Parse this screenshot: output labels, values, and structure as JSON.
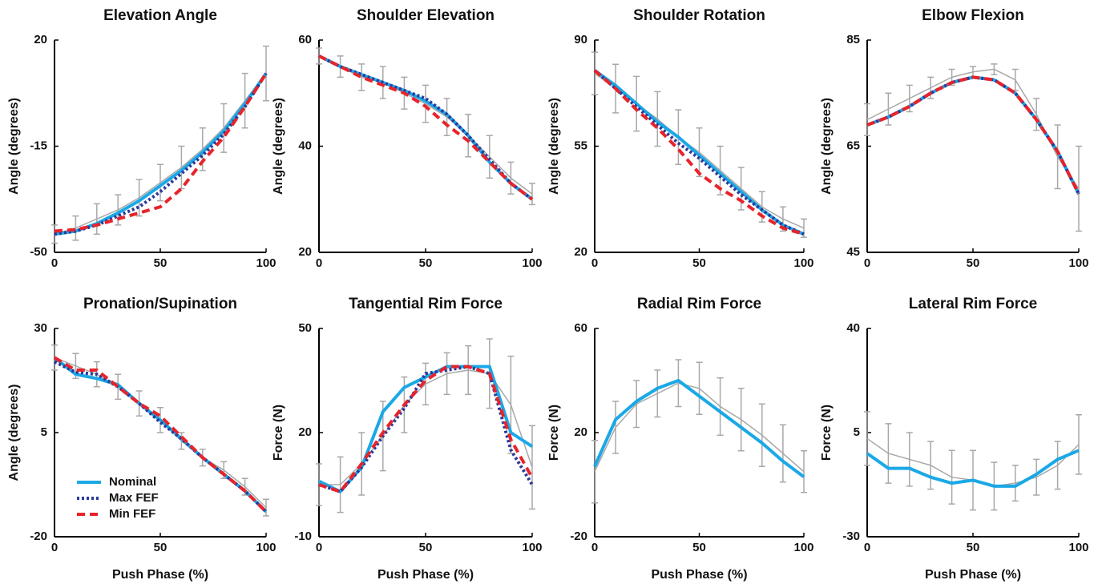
{
  "chart_data": [
    {
      "type": "line",
      "title": "Elevation Angle",
      "ylabel": "Angle (degrees)",
      "xlim": [
        0,
        100
      ],
      "xticks": [
        0,
        50,
        100
      ],
      "ylim": [
        -50,
        20
      ],
      "yticks": [
        -50,
        -15,
        20
      ],
      "x": [
        0,
        10,
        20,
        30,
        40,
        50,
        60,
        70,
        80,
        90,
        100
      ],
      "series": [
        {
          "name": "Nominal",
          "color": "#1ba8e6",
          "dash": "solid",
          "values": [
            -44,
            -43,
            -40.5,
            -37,
            -33,
            -28,
            -23,
            -17,
            -10,
            -1,
            9
          ]
        },
        {
          "name": "Max FEF",
          "color": "#2b3a9a",
          "dash": "dotted",
          "values": [
            -44,
            -43,
            -41,
            -38,
            -35,
            -30,
            -24,
            -18,
            -11,
            -2,
            9
          ]
        },
        {
          "name": "Min FEF",
          "color": "#e8232a",
          "dash": "dashed",
          "values": [
            -43,
            -42.5,
            -41,
            -39,
            -37,
            -35,
            -29,
            -20,
            -12,
            -2,
            9
          ]
        }
      ],
      "error_bars": {
        "color": "#a8a8a8",
        "values": [
          -44,
          -42,
          -39,
          -36,
          -32,
          -27,
          -22,
          -16,
          -9,
          0,
          9
        ],
        "errors": [
          3,
          4,
          5,
          5,
          6,
          6,
          7,
          7,
          8,
          9,
          9
        ]
      }
    },
    {
      "type": "line",
      "title": "Shoulder Elevation",
      "ylabel": "Angle (degrees)",
      "xlim": [
        0,
        100
      ],
      "xticks": [
        0,
        50,
        100
      ],
      "ylim": [
        20,
        60
      ],
      "yticks": [
        20,
        40,
        60
      ],
      "x": [
        0,
        10,
        20,
        30,
        40,
        50,
        60,
        70,
        80,
        90,
        100
      ],
      "series": [
        {
          "name": "Nominal",
          "color": "#1ba8e6",
          "dash": "solid",
          "values": [
            57,
            55,
            53.5,
            52,
            50.5,
            48.5,
            46,
            42,
            37,
            33,
            30
          ]
        },
        {
          "name": "Max FEF",
          "color": "#2b3a9a",
          "dash": "dotted",
          "values": [
            57,
            55,
            53.5,
            52,
            50.5,
            49,
            46,
            42,
            37.5,
            33,
            30
          ]
        },
        {
          "name": "Min FEF",
          "color": "#e8232a",
          "dash": "dashed",
          "values": [
            57,
            55,
            53,
            51.5,
            50,
            47.5,
            44,
            41,
            37,
            33,
            30
          ]
        }
      ],
      "error_bars": {
        "color": "#a8a8a8",
        "values": [
          57,
          55,
          53,
          52,
          50,
          48,
          45.5,
          42,
          38,
          34,
          31
        ],
        "errors": [
          1.5,
          2,
          2.5,
          3,
          3,
          3.5,
          3.5,
          4,
          4,
          3,
          2
        ]
      }
    },
    {
      "type": "line",
      "title": "Shoulder Rotation",
      "ylabel": "Angle (degrees)",
      "xlim": [
        0,
        100
      ],
      "xticks": [
        0,
        50,
        100
      ],
      "ylim": [
        20,
        90
      ],
      "yticks": [
        20,
        55,
        90
      ],
      "x": [
        0,
        10,
        20,
        30,
        40,
        50,
        60,
        70,
        80,
        90,
        100
      ],
      "series": [
        {
          "name": "Nominal",
          "color": "#1ba8e6",
          "dash": "solid",
          "values": [
            80,
            75,
            69,
            63,
            58,
            52,
            46,
            40,
            34,
            29,
            26
          ]
        },
        {
          "name": "Max FEF",
          "color": "#2b3a9a",
          "dash": "dotted",
          "values": [
            80,
            74,
            68,
            62,
            56,
            51,
            45,
            39,
            34,
            29,
            26
          ]
        },
        {
          "name": "Min FEF",
          "color": "#e8232a",
          "dash": "dashed",
          "values": [
            80,
            74,
            67,
            61,
            54,
            46,
            41,
            37,
            32,
            28,
            26
          ]
        }
      ],
      "error_bars": {
        "color": "#a8a8a8",
        "values": [
          79,
          74,
          69,
          64,
          58,
          53,
          47,
          41,
          35,
          31,
          28
        ],
        "errors": [
          7,
          8,
          9,
          9,
          9,
          8,
          8,
          7,
          5,
          4,
          3
        ]
      }
    },
    {
      "type": "line",
      "title": "Elbow Flexion",
      "ylabel": "Angle (degrees)",
      "xlim": [
        0,
        100
      ],
      "xticks": [
        0,
        50,
        100
      ],
      "ylim": [
        45,
        85
      ],
      "yticks": [
        45,
        65,
        85
      ],
      "x": [
        0,
        10,
        20,
        30,
        40,
        50,
        60,
        70,
        80,
        90,
        100
      ],
      "series": [
        {
          "name": "Nominal",
          "color": "#1ba8e6",
          "dash": "solid",
          "values": [
            69,
            70.5,
            72.5,
            75,
            77,
            78,
            77.5,
            75,
            70,
            64,
            56
          ]
        },
        {
          "name": "Max FEF",
          "color": "#2b3a9a",
          "dash": "dotted",
          "values": [
            69,
            70.5,
            72.5,
            75,
            77,
            78,
            77.5,
            75,
            70,
            64,
            56
          ]
        },
        {
          "name": "Min FEF",
          "color": "#e8232a",
          "dash": "dashed",
          "values": [
            69,
            70.5,
            72.5,
            75,
            77,
            78,
            77.5,
            75,
            70,
            64,
            56
          ]
        }
      ],
      "error_bars": {
        "color": "#a8a8a8",
        "values": [
          70,
          72,
          74,
          76,
          78,
          79,
          79.5,
          77.5,
          71,
          63,
          57
        ],
        "errors": [
          3,
          3,
          2.5,
          2,
          1.5,
          1,
          1,
          2,
          3,
          6,
          8
        ]
      }
    },
    {
      "type": "line",
      "title": "Pronation/Supination",
      "ylabel": "Angle (degrees)",
      "xlabel": "Push Phase (%)",
      "legend": "lower left",
      "xlim": [
        0,
        100
      ],
      "xticks": [
        0,
        50,
        100
      ],
      "ylim": [
        -20,
        30
      ],
      "yticks": [
        -20,
        5,
        30
      ],
      "x": [
        0,
        10,
        20,
        30,
        40,
        50,
        60,
        70,
        80,
        90,
        100
      ],
      "series": [
        {
          "name": "Nominal",
          "color": "#1ba8e6",
          "dash": "solid",
          "values": [
            23,
            19,
            18,
            16.5,
            12,
            8,
            3.5,
            -1,
            -5,
            -9,
            -14
          ]
        },
        {
          "name": "Max FEF",
          "color": "#2b3a9a",
          "dash": "dotted",
          "values": [
            22,
            19.5,
            19,
            16,
            12,
            7.5,
            3.5,
            -1,
            -5,
            -9,
            -14
          ]
        },
        {
          "name": "Min FEF",
          "color": "#e8232a",
          "dash": "dashed",
          "values": [
            23,
            20,
            20,
            16,
            12,
            9,
            4,
            -1,
            -5,
            -9,
            -14
          ]
        }
      ],
      "error_bars": {
        "color": "#a8a8a8",
        "values": [
          23,
          21,
          19,
          16,
          12,
          8,
          3,
          -1,
          -4,
          -8,
          -13
        ],
        "errors": [
          3,
          3,
          3,
          3,
          3,
          3,
          2,
          2,
          2,
          2,
          2
        ]
      }
    },
    {
      "type": "line",
      "title": "Tangential Rim Force",
      "ylabel": "Force (N)",
      "xlabel": "Push Phase (%)",
      "xlim": [
        0,
        100
      ],
      "xticks": [
        0,
        50,
        100
      ],
      "ylim": [
        -10,
        50
      ],
      "yticks": [
        -10,
        20,
        50
      ],
      "x": [
        0,
        10,
        20,
        30,
        40,
        50,
        60,
        70,
        80,
        90,
        100
      ],
      "series": [
        {
          "name": "Nominal",
          "color": "#1ba8e6",
          "dash": "solid",
          "values": [
            6,
            3,
            10,
            26,
            33,
            36,
            39,
            39,
            39,
            20,
            16
          ]
        },
        {
          "name": "Max FEF",
          "color": "#2b3a9a",
          "dash": "dotted",
          "values": [
            5,
            3,
            10,
            19,
            27,
            37,
            38,
            39,
            37,
            15,
            5
          ]
        },
        {
          "name": "Min FEF",
          "color": "#e8232a",
          "dash": "dashed",
          "values": [
            5,
            3,
            11,
            20,
            28,
            35,
            39,
            39,
            37,
            18,
            7
          ]
        }
      ],
      "error_bars": {
        "color": "#a8a8a8",
        "values": [
          5,
          5,
          11,
          19,
          28,
          34,
          37,
          38,
          37,
          28,
          10
        ],
        "errors": [
          6,
          8,
          9,
          10,
          8,
          6,
          6,
          7,
          10,
          14,
          12
        ]
      }
    },
    {
      "type": "line",
      "title": "Radial Rim Force",
      "ylabel": "Force (N)",
      "xlabel": "Push Phase (%)",
      "xlim": [
        0,
        100
      ],
      "xticks": [
        0,
        50,
        100
      ],
      "ylim": [
        -20,
        60
      ],
      "yticks": [
        -20,
        20,
        60
      ],
      "x": [
        0,
        10,
        20,
        30,
        40,
        50,
        60,
        70,
        80,
        90,
        100
      ],
      "series": [
        {
          "name": "Nominal",
          "color": "#1ba8e6",
          "dash": "solid",
          "values": [
            7,
            25,
            32,
            37,
            40,
            34,
            28,
            22,
            16,
            9,
            3
          ]
        }
      ],
      "error_bars": {
        "color": "#a8a8a8",
        "values": [
          5,
          22,
          31,
          35,
          39,
          37,
          30,
          25,
          19,
          12,
          5
        ],
        "errors": [
          12,
          10,
          9,
          9,
          9,
          10,
          11,
          12,
          12,
          11,
          8
        ]
      }
    },
    {
      "type": "line",
      "title": "Lateral Rim Force",
      "ylabel": "Force (N)",
      "xlabel": "Push Phase (%)",
      "xlim": [
        0,
        100
      ],
      "xticks": [
        0,
        50,
        100
      ],
      "ylim": [
        -30,
        40
      ],
      "yticks": [
        -30,
        5,
        40
      ],
      "x": [
        0,
        10,
        20,
        30,
        40,
        50,
        60,
        70,
        80,
        90,
        100
      ],
      "series": [
        {
          "name": "Nominal",
          "color": "#1ba8e6",
          "dash": "solid",
          "values": [
            -2,
            -7,
            -7,
            -10,
            -12,
            -11,
            -13,
            -13,
            -9,
            -4,
            -1
          ]
        }
      ],
      "error_bars": {
        "color": "#a8a8a8",
        "values": [
          3,
          -2,
          -4,
          -6,
          -10,
          -11,
          -13,
          -12,
          -10,
          -6,
          1
        ],
        "errors": [
          9,
          10,
          9,
          8,
          9,
          10,
          8,
          6,
          6,
          8,
          10
        ]
      }
    }
  ]
}
